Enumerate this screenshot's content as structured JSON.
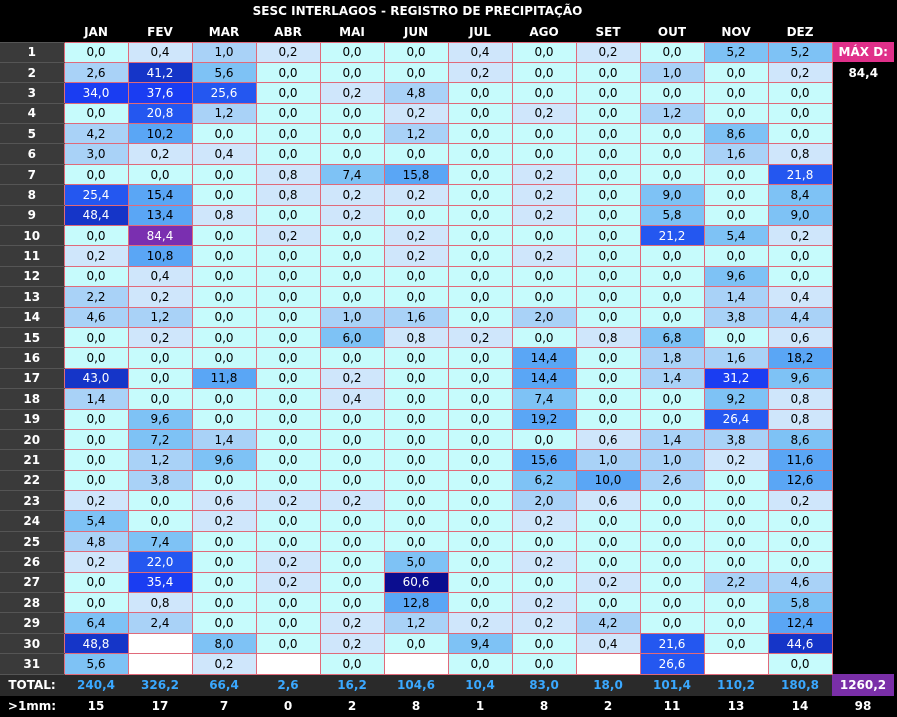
{
  "title": "SESC INTERLAGOS - REGISTRO DE PRECIPITAÇÃO",
  "months": [
    "JAN",
    "FEV",
    "MAR",
    "ABR",
    "MAI",
    "JUN",
    "JUL",
    "AGO",
    "SET",
    "OUT",
    "NOV",
    "DEZ"
  ],
  "max_label": "MÁX D:",
  "max_value": "84,4",
  "total_label": "TOTAL:",
  "count_label": ">1mm:",
  "rows": [
    {
      "day": "1",
      "vals": [
        "0,0",
        "0,4",
        "1,0",
        "0,2",
        "0,0",
        "0,0",
        "0,4",
        "0,0",
        "0,2",
        "0,0",
        "5,2",
        "5,2"
      ]
    },
    {
      "day": "2",
      "vals": [
        "2,6",
        "41,2",
        "5,6",
        "0,0",
        "0,0",
        "0,0",
        "0,2",
        "0,0",
        "0,0",
        "1,0",
        "0,0",
        "0,2"
      ]
    },
    {
      "day": "3",
      "vals": [
        "34,0",
        "37,6",
        "25,6",
        "0,0",
        "0,2",
        "4,8",
        "0,0",
        "0,0",
        "0,0",
        "0,0",
        "0,0",
        "0,0"
      ]
    },
    {
      "day": "4",
      "vals": [
        "0,0",
        "20,8",
        "1,2",
        "0,0",
        "0,0",
        "0,2",
        "0,0",
        "0,2",
        "0,0",
        "1,2",
        "0,0",
        "0,0"
      ]
    },
    {
      "day": "5",
      "vals": [
        "4,2",
        "10,2",
        "0,0",
        "0,0",
        "0,0",
        "1,2",
        "0,0",
        "0,0",
        "0,0",
        "0,0",
        "8,6",
        "0,0"
      ]
    },
    {
      "day": "6",
      "vals": [
        "3,0",
        "0,2",
        "0,4",
        "0,0",
        "0,0",
        "0,0",
        "0,0",
        "0,0",
        "0,0",
        "0,0",
        "1,6",
        "0,8"
      ]
    },
    {
      "day": "7",
      "vals": [
        "0,0",
        "0,0",
        "0,0",
        "0,8",
        "7,4",
        "15,8",
        "0,0",
        "0,2",
        "0,0",
        "0,0",
        "0,0",
        "21,8"
      ]
    },
    {
      "day": "8",
      "vals": [
        "25,4",
        "15,4",
        "0,0",
        "0,8",
        "0,2",
        "0,2",
        "0,0",
        "0,2",
        "0,0",
        "9,0",
        "0,0",
        "8,4"
      ]
    },
    {
      "day": "9",
      "vals": [
        "48,4",
        "13,4",
        "0,8",
        "0,0",
        "0,2",
        "0,0",
        "0,0",
        "0,2",
        "0,0",
        "5,8",
        "0,0",
        "9,0"
      ]
    },
    {
      "day": "10",
      "vals": [
        "0,0",
        "84,4",
        "0,0",
        "0,2",
        "0,0",
        "0,2",
        "0,0",
        "0,0",
        "0,0",
        "21,2",
        "5,4",
        "0,2"
      ]
    },
    {
      "day": "11",
      "vals": [
        "0,2",
        "10,8",
        "0,0",
        "0,0",
        "0,0",
        "0,2",
        "0,0",
        "0,2",
        "0,0",
        "0,0",
        "0,0",
        "0,0"
      ]
    },
    {
      "day": "12",
      "vals": [
        "0,0",
        "0,4",
        "0,0",
        "0,0",
        "0,0",
        "0,0",
        "0,0",
        "0,0",
        "0,0",
        "0,0",
        "9,6",
        "0,0"
      ]
    },
    {
      "day": "13",
      "vals": [
        "2,2",
        "0,2",
        "0,0",
        "0,0",
        "0,0",
        "0,0",
        "0,0",
        "0,0",
        "0,0",
        "0,0",
        "1,4",
        "0,4"
      ]
    },
    {
      "day": "14",
      "vals": [
        "4,6",
        "1,2",
        "0,0",
        "0,0",
        "1,0",
        "1,6",
        "0,0",
        "2,0",
        "0,0",
        "0,0",
        "3,8",
        "4,4"
      ]
    },
    {
      "day": "15",
      "vals": [
        "0,0",
        "0,2",
        "0,0",
        "0,0",
        "6,0",
        "0,8",
        "0,2",
        "0,0",
        "0,8",
        "6,8",
        "0,0",
        "0,6"
      ]
    },
    {
      "day": "16",
      "vals": [
        "0,0",
        "0,0",
        "0,0",
        "0,0",
        "0,0",
        "0,0",
        "0,0",
        "14,4",
        "0,0",
        "1,8",
        "1,6",
        "18,2"
      ]
    },
    {
      "day": "17",
      "vals": [
        "43,0",
        "0,0",
        "11,8",
        "0,0",
        "0,2",
        "0,0",
        "0,0",
        "14,4",
        "0,0",
        "1,4",
        "31,2",
        "9,6"
      ]
    },
    {
      "day": "18",
      "vals": [
        "1,4",
        "0,0",
        "0,0",
        "0,0",
        "0,4",
        "0,0",
        "0,0",
        "7,4",
        "0,0",
        "0,0",
        "9,2",
        "0,8"
      ]
    },
    {
      "day": "19",
      "vals": [
        "0,0",
        "9,6",
        "0,0",
        "0,0",
        "0,0",
        "0,0",
        "0,0",
        "19,2",
        "0,0",
        "0,0",
        "26,4",
        "0,8"
      ]
    },
    {
      "day": "20",
      "vals": [
        "0,0",
        "7,2",
        "1,4",
        "0,0",
        "0,0",
        "0,0",
        "0,0",
        "0,0",
        "0,6",
        "1,4",
        "3,8",
        "8,6"
      ]
    },
    {
      "day": "21",
      "vals": [
        "0,0",
        "1,2",
        "9,6",
        "0,0",
        "0,0",
        "0,0",
        "0,0",
        "15,6",
        "1,0",
        "1,0",
        "0,2",
        "11,6"
      ]
    },
    {
      "day": "22",
      "vals": [
        "0,0",
        "3,8",
        "0,0",
        "0,0",
        "0,0",
        "0,0",
        "0,0",
        "6,2",
        "10,0",
        "2,6",
        "0,0",
        "12,6"
      ]
    },
    {
      "day": "23",
      "vals": [
        "0,2",
        "0,0",
        "0,6",
        "0,2",
        "0,2",
        "0,0",
        "0,0",
        "2,0",
        "0,6",
        "0,0",
        "0,0",
        "0,2"
      ]
    },
    {
      "day": "24",
      "vals": [
        "5,4",
        "0,0",
        "0,2",
        "0,0",
        "0,0",
        "0,0",
        "0,0",
        "0,2",
        "0,0",
        "0,0",
        "0,0",
        "0,0"
      ]
    },
    {
      "day": "25",
      "vals": [
        "4,8",
        "7,4",
        "0,0",
        "0,0",
        "0,0",
        "0,0",
        "0,0",
        "0,0",
        "0,0",
        "0,0",
        "0,0",
        "0,0"
      ]
    },
    {
      "day": "26",
      "vals": [
        "0,2",
        "22,0",
        "0,0",
        "0,2",
        "0,0",
        "5,0",
        "0,0",
        "0,2",
        "0,0",
        "0,0",
        "0,0",
        "0,0"
      ]
    },
    {
      "day": "27",
      "vals": [
        "0,0",
        "35,4",
        "0,0",
        "0,2",
        "0,0",
        "60,6",
        "0,0",
        "0,0",
        "0,2",
        "0,0",
        "2,2",
        "4,6"
      ]
    },
    {
      "day": "28",
      "vals": [
        "0,0",
        "0,8",
        "0,0",
        "0,0",
        "0,0",
        "12,8",
        "0,0",
        "0,2",
        "0,0",
        "0,0",
        "0,0",
        "5,8"
      ]
    },
    {
      "day": "29",
      "vals": [
        "6,4",
        "2,4",
        "0,0",
        "0,0",
        "0,2",
        "1,2",
        "0,2",
        "0,2",
        "4,2",
        "0,0",
        "0,0",
        "12,4"
      ]
    },
    {
      "day": "30",
      "vals": [
        "48,8",
        "",
        "8,0",
        "0,0",
        "0,2",
        "0,0",
        "9,4",
        "0,0",
        "0,4",
        "21,6",
        "0,0",
        "44,6"
      ]
    },
    {
      "day": "31",
      "vals": [
        "5,6",
        "",
        "0,2",
        "",
        "0,0",
        "",
        "0,0",
        "0,0",
        "",
        "26,6",
        "",
        "0,0"
      ]
    }
  ],
  "totals": [
    "240,4",
    "326,2",
    "66,4",
    "2,6",
    "16,2",
    "104,6",
    "10,4",
    "83,0",
    "18,0",
    "101,4",
    "110,2",
    "180,8"
  ],
  "grand_total": "1260,2",
  "counts": [
    "15",
    "17",
    "7",
    "0",
    "2",
    "8",
    "1",
    "8",
    "2",
    "11",
    "13",
    "14"
  ],
  "count_total": "98"
}
